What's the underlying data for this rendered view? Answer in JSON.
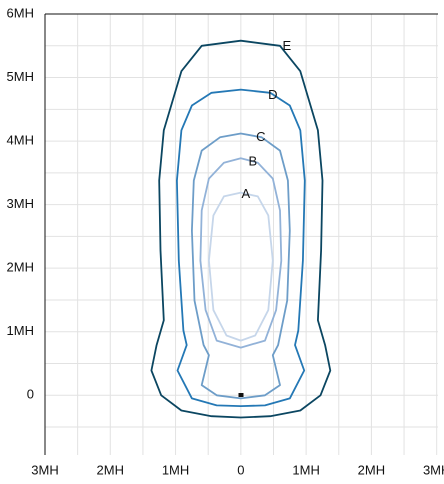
{
  "chart_data": {
    "type": "contour",
    "xlim": [
      -3,
      3.02
    ],
    "ylim": [
      -0.94,
      6
    ],
    "xticks": [
      {
        "value": -3,
        "label": "3MH"
      },
      {
        "value": -2,
        "label": "2MH"
      },
      {
        "value": -1,
        "label": "1MH"
      },
      0,
      {
        "value": 1,
        "label": "1MH"
      },
      {
        "value": 2,
        "label": "2MH"
      },
      {
        "value": 3,
        "label": "3MH"
      }
    ],
    "yticks": [
      0,
      {
        "value": 1,
        "label": "1MH"
      },
      {
        "value": 2,
        "label": "2MH"
      },
      {
        "value": 3,
        "label": "3MH"
      },
      {
        "value": 4,
        "label": "4MH"
      },
      {
        "value": 5,
        "label": "5MH"
      },
      {
        "value": 6,
        "label": "6MH"
      }
    ],
    "xminor": [
      -2.5,
      -1.5,
      -0.5,
      0.5,
      1.5,
      2.5
    ],
    "yminor": [
      -0.5,
      0.5,
      1.5,
      2.5,
      3.5,
      4.5,
      5.5
    ],
    "grid": true,
    "series": [
      {
        "name": "E",
        "color": "#0b4661",
        "x": [
          0,
          0.6,
          0.91,
          1.18,
          1.25,
          1.23,
          1.18,
          1.29,
          1.37,
          1.22,
          0.91,
          0.45,
          0,
          -0.45,
          -0.91,
          -1.22,
          -1.37,
          -1.29,
          -1.18,
          -1.23,
          -1.25,
          -1.18,
          -0.91,
          -0.6
        ],
        "y": [
          5.58,
          5.5,
          5.1,
          4.17,
          3.38,
          2.28,
          1.18,
          0.79,
          0.39,
          0,
          -0.24,
          -0.33,
          -0.35,
          -0.33,
          -0.24,
          0,
          0.39,
          0.79,
          1.18,
          2.28,
          3.38,
          4.17,
          5.1,
          5.5
        ]
      },
      {
        "name": "D",
        "color": "#2478b5",
        "x": [
          0,
          0.45,
          0.75,
          0.91,
          0.98,
          0.95,
          0.88,
          0.83,
          0.97,
          0.75,
          0.37,
          0,
          -0.37,
          -0.75,
          -0.97,
          -0.83,
          -0.88,
          -0.95,
          -0.98,
          -0.91,
          -0.75,
          -0.45
        ],
        "y": [
          4.81,
          4.76,
          4.56,
          4.17,
          3.38,
          2.12,
          1.02,
          0.79,
          0.39,
          -0.05,
          -0.16,
          -0.17,
          -0.16,
          -0.05,
          0.39,
          0.79,
          1.02,
          2.12,
          3.38,
          4.17,
          4.56,
          4.76
        ]
      },
      {
        "name": "C",
        "color": "#6d9dc8",
        "x": [
          0,
          0.32,
          0.6,
          0.72,
          0.75,
          0.71,
          0.57,
          0.49,
          0.6,
          0.37,
          0,
          -0.37,
          -0.6,
          -0.49,
          -0.57,
          -0.71,
          -0.75,
          -0.72,
          -0.6,
          -0.32
        ],
        "y": [
          4.12,
          4.06,
          3.85,
          3.38,
          2.59,
          1.49,
          0.79,
          0.63,
          0.16,
          0,
          -0.05,
          0,
          0.16,
          0.63,
          0.79,
          1.49,
          2.59,
          3.38,
          3.85,
          4.06
        ]
      },
      {
        "name": "B",
        "color": "#92b2d8",
        "x": [
          0,
          0.26,
          0.49,
          0.6,
          0.62,
          0.54,
          0.37,
          0,
          -0.37,
          -0.54,
          -0.62,
          -0.6,
          -0.49,
          -0.26
        ],
        "y": [
          3.73,
          3.66,
          3.41,
          2.91,
          2.12,
          1.34,
          0.86,
          0.75,
          0.86,
          1.34,
          2.12,
          2.91,
          3.41,
          3.66
        ]
      },
      {
        "name": "A",
        "color": "#c6d6ea",
        "x": [
          0,
          0.26,
          0.42,
          0.49,
          0.42,
          0.22,
          0,
          -0.22,
          -0.42,
          -0.49,
          -0.42,
          -0.26
        ],
        "y": [
          3.19,
          3.13,
          2.83,
          2.12,
          1.34,
          0.94,
          0.86,
          0.94,
          1.34,
          2.12,
          2.83,
          3.13
        ]
      }
    ]
  }
}
